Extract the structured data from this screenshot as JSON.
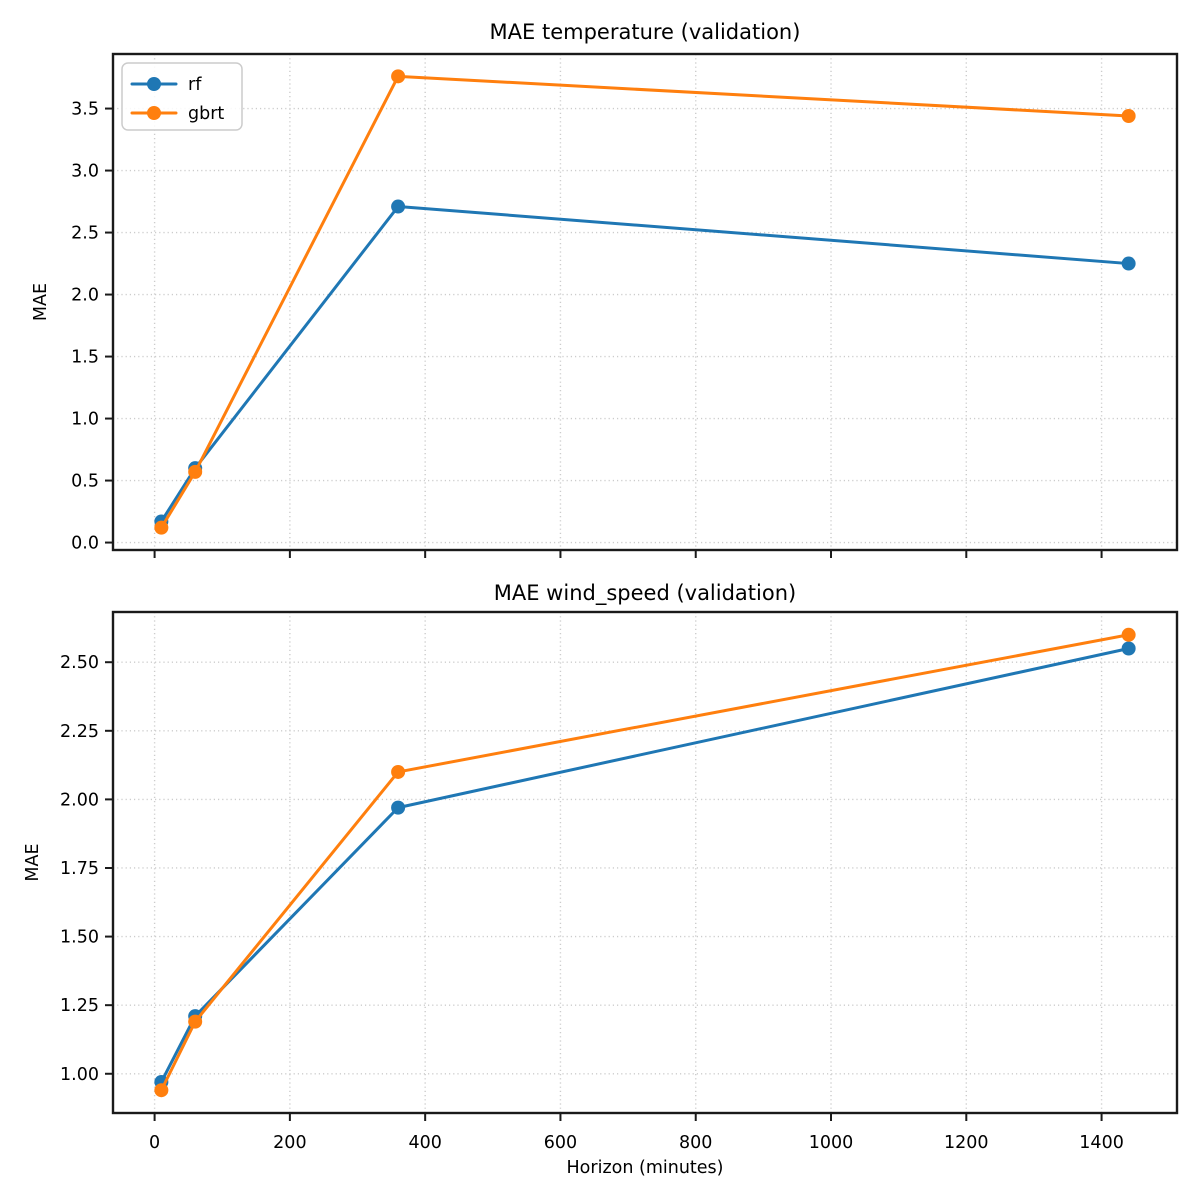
{
  "figure": {
    "background": "#ffffff"
  },
  "palette": {
    "rf": "#1f77b4",
    "gbrt": "#ff7f0e",
    "grid": "#cccccc",
    "spine": "#1a1a1a",
    "text": "#000000",
    "legend_border": "#cccccc",
    "legend_background": "#ffffff"
  },
  "chart_data": [
    {
      "type": "line",
      "title": "MAE temperature (validation)",
      "xlabel": "",
      "ylabel": "MAE",
      "x": [
        10,
        60,
        360,
        1440
      ],
      "series": [
        {
          "name": "rf",
          "color": "#1f77b4",
          "values": [
            0.17,
            0.6,
            2.71,
            2.25
          ]
        },
        {
          "name": "gbrt",
          "color": "#ff7f0e",
          "values": [
            0.12,
            0.57,
            3.76,
            3.44
          ]
        }
      ],
      "xlim": [
        -61.5,
        1511.5
      ],
      "ylim": [
        -0.06,
        3.94
      ],
      "xticks": [
        0,
        200,
        400,
        600,
        800,
        1000,
        1200,
        1400
      ],
      "xtick_labels": [],
      "yticks": [
        0.0,
        0.5,
        1.0,
        1.5,
        2.0,
        2.5,
        3.0,
        3.5
      ],
      "ytick_labels": [
        "0.0",
        "0.5",
        "1.0",
        "1.5",
        "2.0",
        "2.5",
        "3.0",
        "3.5"
      ],
      "grid": "dotted",
      "legend": {
        "position": "upper left",
        "entries": [
          "rf",
          "gbrt"
        ]
      }
    },
    {
      "type": "line",
      "title": "MAE wind_speed (validation)",
      "xlabel": "Horizon (minutes)",
      "ylabel": "MAE",
      "x": [
        10,
        60,
        360,
        1440
      ],
      "series": [
        {
          "name": "rf",
          "color": "#1f77b4",
          "values": [
            0.97,
            1.21,
            1.97,
            2.55
          ]
        },
        {
          "name": "gbrt",
          "color": "#ff7f0e",
          "values": [
            0.94,
            1.19,
            2.1,
            2.6
          ]
        }
      ],
      "xlim": [
        -61.5,
        1511.5
      ],
      "ylim": [
        0.857,
        2.683
      ],
      "xticks": [
        0,
        200,
        400,
        600,
        800,
        1000,
        1200,
        1400
      ],
      "xtick_labels": [
        "0",
        "200",
        "400",
        "600",
        "800",
        "1000",
        "1200",
        "1400"
      ],
      "yticks": [
        1.0,
        1.25,
        1.5,
        1.75,
        2.0,
        2.25,
        2.5
      ],
      "ytick_labels": [
        "1.00",
        "1.25",
        "1.50",
        "1.75",
        "2.00",
        "2.25",
        "2.50"
      ],
      "grid": "dotted",
      "legend": null
    }
  ]
}
